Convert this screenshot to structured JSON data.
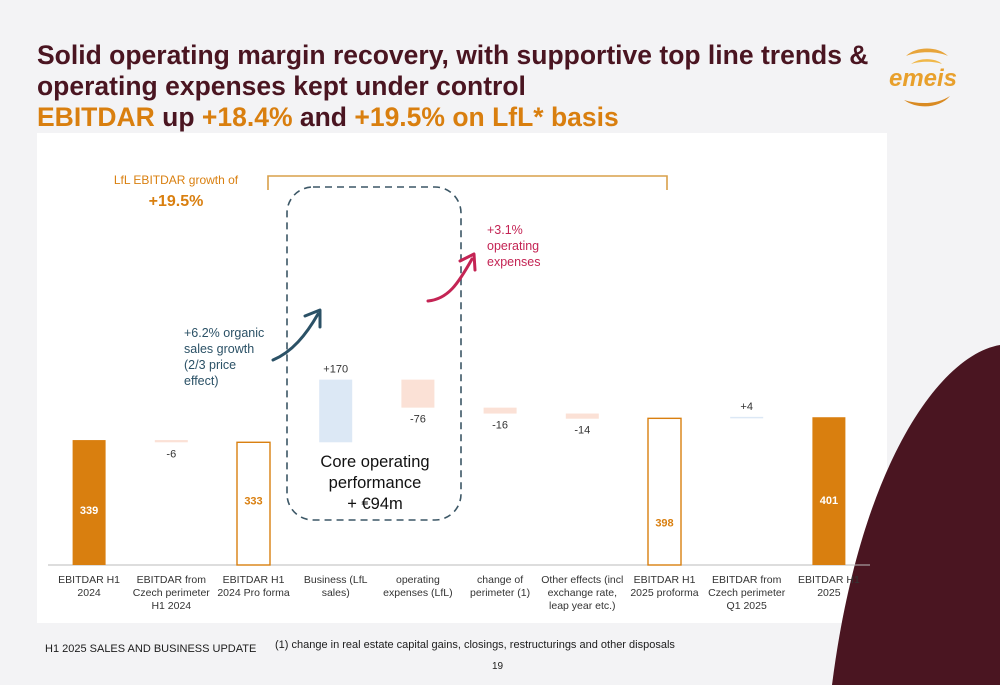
{
  "slide": {
    "title_line1": "Solid operating margin recovery, with supportive top line trends &",
    "title_line2": "operating expenses kept under control",
    "title_line3_a": "EBITDAR",
    "title_line3_b": " up ",
    "title_line3_c": "+18.4%",
    "title_line3_d": " and ",
    "title_line3_e": "+19.5% on LfL* basis",
    "logo_text": "emeis",
    "footer_left": "H1 2025 SALES AND BUSINESS UPDATE",
    "footnote": "(1) change in real estate capital gains, closings, restructurings and other disposals",
    "page_number": "19"
  },
  "annotations": {
    "lfl_label": "LfL EBITDAR growth of",
    "lfl_value": "+19.5%",
    "organic_growth": [
      "+6.2% organic",
      "sales growth",
      "(2/3 price",
      "effect)"
    ],
    "opex_growth": [
      "+3.1%",
      "operating",
      "expenses"
    ],
    "core_box": [
      "Core operating",
      "performance",
      "+ €94m"
    ]
  },
  "colors": {
    "brand_dark": "#4a1521",
    "accent_orange": "#d97f0f",
    "light_blue": "#dce8f5",
    "light_pink": "#fbe1d6",
    "organic_arrow": "#2b5166",
    "opex_arrow": "#c42454",
    "bracket": "#d9a04a"
  },
  "chart_data": {
    "type": "bar",
    "subtype": "waterfall",
    "categories": [
      [
        "EBITDAR H1",
        "2024"
      ],
      [
        "EBITDAR from",
        "Czech perimeter",
        "H1 2024"
      ],
      [
        "EBITDAR H1",
        "2024 Pro forma"
      ],
      [
        "Business (LfL",
        "sales)"
      ],
      [
        "operating",
        "expenses (LfL)"
      ],
      [
        "change of",
        "perimeter (1)"
      ],
      [
        "Other effects (incl",
        "exchange rate,",
        "leap year etc.)"
      ],
      [
        "EBITDAR H1",
        "2025 proforma"
      ],
      [
        "EBITDAR from",
        "Czech perimeter",
        "Q1 2025"
      ],
      [
        "EBITDAR H1",
        "2025"
      ]
    ],
    "bars": [
      {
        "kind": "total-solid",
        "value": 339,
        "label": "339"
      },
      {
        "kind": "delta-neg",
        "value": -6,
        "label": "-6"
      },
      {
        "kind": "total-outline",
        "value": 333,
        "label": "333"
      },
      {
        "kind": "delta-pos",
        "value": 170,
        "label": "+170"
      },
      {
        "kind": "delta-neg",
        "value": -76,
        "label": "-76"
      },
      {
        "kind": "delta-neg",
        "value": -16,
        "label": "-16"
      },
      {
        "kind": "delta-neg",
        "value": -14,
        "label": "-14"
      },
      {
        "kind": "total-outline",
        "value": 398,
        "label": "398"
      },
      {
        "kind": "delta-pos",
        "value": 4,
        "label": "+4"
      },
      {
        "kind": "total-solid",
        "value": 401,
        "label": "401"
      }
    ],
    "units": "€m",
    "title": "",
    "xlabel": "",
    "ylabel": "",
    "grid": false
  }
}
